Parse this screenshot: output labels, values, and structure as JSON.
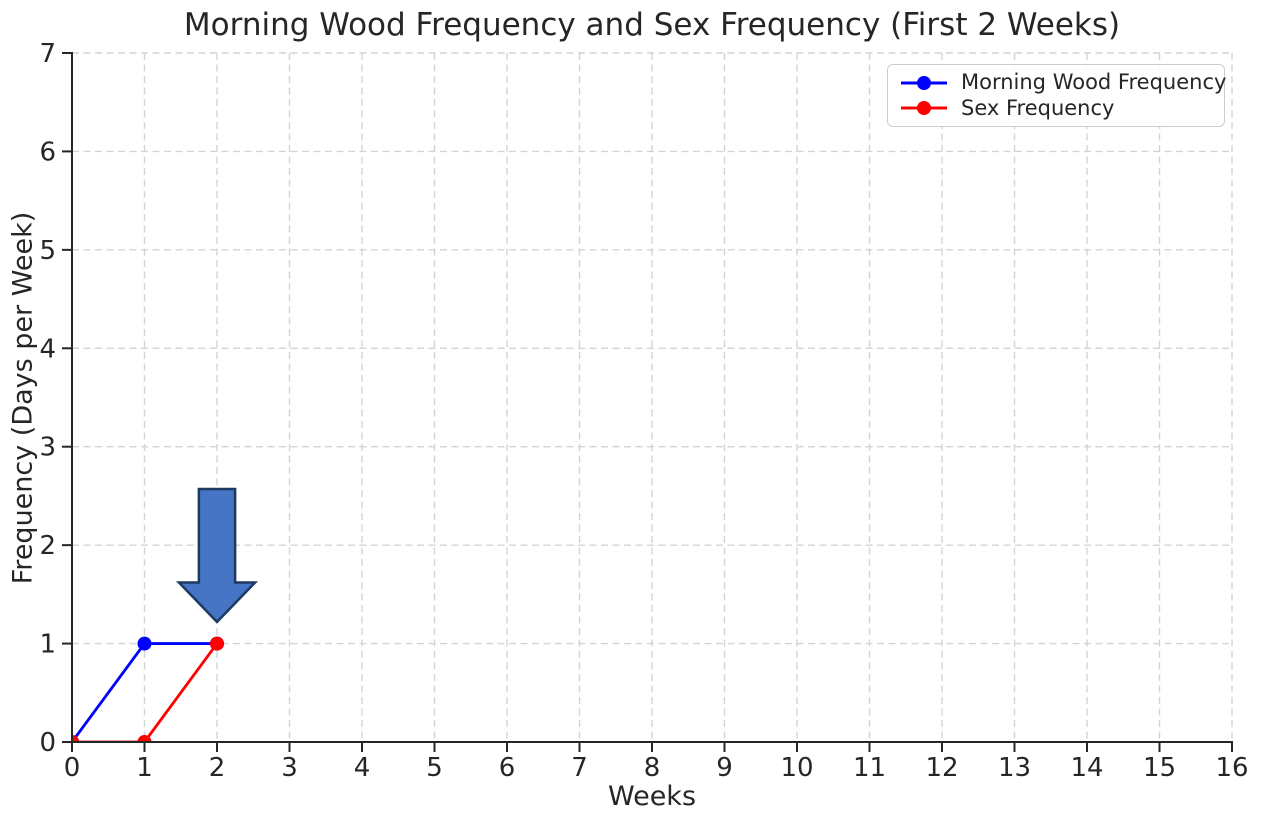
{
  "chart_data": {
    "type": "line",
    "title": "Morning Wood Frequency and Sex Frequency (First 2 Weeks)",
    "xlabel": "Weeks",
    "ylabel": "Frequency (Days per Week)",
    "xlim": [
      0,
      16
    ],
    "ylim": [
      0,
      7
    ],
    "xticks": [
      0,
      1,
      2,
      3,
      4,
      5,
      6,
      7,
      8,
      9,
      10,
      11,
      12,
      13,
      14,
      15,
      16
    ],
    "yticks": [
      0,
      1,
      2,
      3,
      4,
      5,
      6,
      7
    ],
    "grid": true,
    "grid_style": "dashed",
    "legend_position": "upper right",
    "series": [
      {
        "name": "Morning Wood Frequency",
        "color": "#0000FF",
        "marker": "circle",
        "x": [
          0,
          1,
          2
        ],
        "y": [
          0,
          1,
          1
        ]
      },
      {
        "name": "Sex Frequency",
        "color": "#FF0000",
        "marker": "circle",
        "x": [
          0,
          1,
          2
        ],
        "y": [
          0,
          0,
          1
        ]
      }
    ],
    "annotation": {
      "type": "down-arrow",
      "x": 2,
      "y_tail": 2.57,
      "y_tip": 1.22,
      "shaft_width_data_units": 0.5,
      "head_width_data_units": 1.05,
      "head_length_data_units": 0.4,
      "fill_color": "#4575C4",
      "edge_color": "#1E3A63"
    }
  },
  "style_colors": {
    "text": "#262626",
    "spine": "#262626",
    "grid": "#d4d4d4",
    "background": "#ffffff",
    "legend_border": "#cccccc"
  }
}
